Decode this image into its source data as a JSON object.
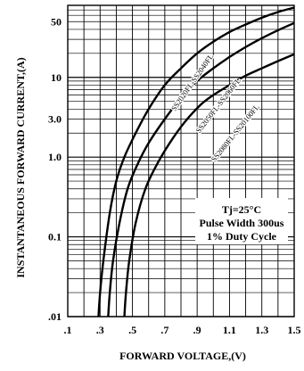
{
  "chart_data": {
    "type": "line",
    "title": "",
    "xlabel": "FORWARD VOLTAGE,(V)",
    "ylabel": "INSTANTANEOUS FORWARD CURRENT,(A)",
    "x_scale": "linear",
    "y_scale": "log",
    "xlim": [
      0.1,
      1.5
    ],
    "ylim": [
      0.01,
      80
    ],
    "x_ticks": [
      ".1",
      ".3",
      ".5",
      ".7",
      ".9",
      "1.1",
      "1.3",
      "1.5"
    ],
    "x_tick_values": [
      0.1,
      0.3,
      0.5,
      0.7,
      0.9,
      1.1,
      1.3,
      1.5
    ],
    "y_ticks": [
      "50",
      "10",
      "3.0",
      "1.0",
      "0.1",
      ".01"
    ],
    "y_tick_values": [
      50,
      10,
      3,
      1,
      0.1,
      0.01
    ],
    "grid": true,
    "annotation_lines": [
      "Tj=25°C",
      "Pulse Width 300us",
      "1% Duty Cycle"
    ],
    "series": [
      {
        "name": "SS2020FL-SS2040FL",
        "x": [
          0.29,
          0.3,
          0.32,
          0.36,
          0.4,
          0.45,
          0.52,
          0.6,
          0.7,
          0.8,
          0.9,
          1.0,
          1.1,
          1.2,
          1.3,
          1.4,
          1.5
        ],
        "y": [
          0.01,
          0.02,
          0.05,
          0.2,
          0.5,
          1.0,
          2.0,
          4.0,
          8.0,
          13.0,
          20.0,
          28.0,
          37.0,
          46.0,
          56.0,
          66.0,
          75.0
        ]
      },
      {
        "name": "SS2050FL-SS2060FL",
        "x": [
          0.35,
          0.36,
          0.38,
          0.42,
          0.47,
          0.53,
          0.6,
          0.7,
          0.8,
          0.9,
          1.0,
          1.1,
          1.2,
          1.3,
          1.4,
          1.5
        ],
        "y": [
          0.01,
          0.02,
          0.05,
          0.15,
          0.4,
          0.8,
          1.5,
          3.0,
          5.5,
          9.0,
          13.0,
          18.0,
          24.0,
          31.0,
          39.0,
          48.0
        ]
      },
      {
        "name": "SS2080FL-SS20100FL",
        "x": [
          0.45,
          0.46,
          0.48,
          0.52,
          0.58,
          0.65,
          0.73,
          0.82,
          0.92,
          1.0,
          1.1,
          1.2,
          1.3,
          1.4,
          1.5
        ],
        "y": [
          0.01,
          0.02,
          0.05,
          0.15,
          0.4,
          0.8,
          1.5,
          2.7,
          4.5,
          6.0,
          8.0,
          10.5,
          13.0,
          16.0,
          19.5
        ]
      }
    ]
  }
}
